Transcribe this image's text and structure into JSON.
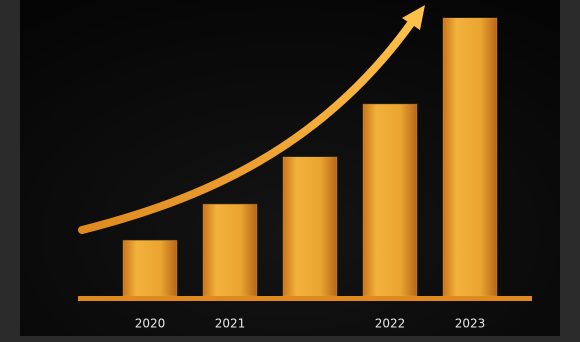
{
  "chart_data": {
    "type": "bar",
    "categories": [
      "2020",
      "2021",
      null,
      "2022",
      "2023"
    ],
    "values": [
      20,
      33,
      50,
      69,
      100
    ],
    "color": "#f0a82c"
  }
}
